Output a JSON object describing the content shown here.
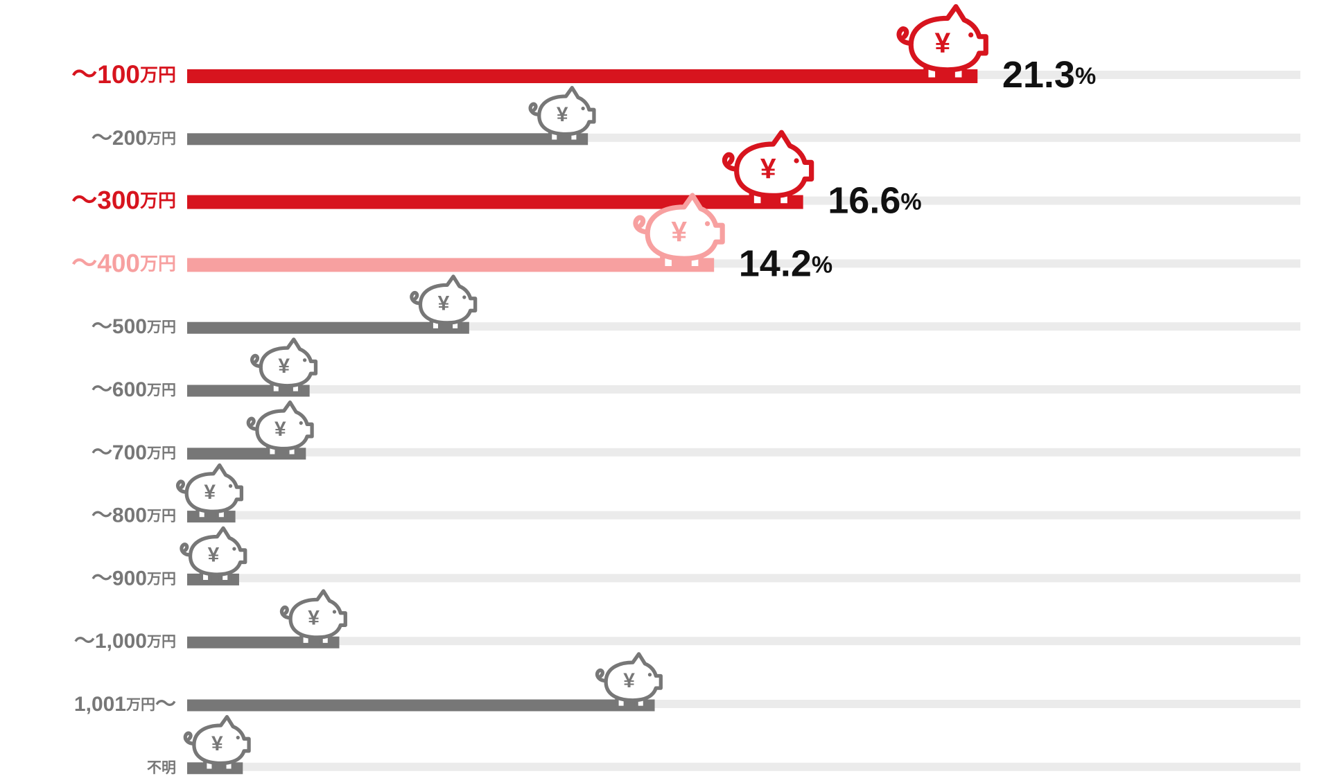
{
  "chart_data": {
    "type": "bar",
    "categories": [
      "〜100万円",
      "〜200万円",
      "〜300万円",
      "〜400万円",
      "〜500万円",
      "〜600万円",
      "〜700万円",
      "〜800万円",
      "〜900万円",
      "〜1,000万円",
      "1,001万円〜",
      "不明"
    ],
    "values": [
      21.3,
      10.8,
      16.6,
      14.2,
      7.6,
      3.3,
      3.2,
      1.3,
      1.4,
      4.1,
      12.6,
      1.5
    ],
    "value_labels": [
      "21.3%",
      null,
      "16.6%",
      "14.2%",
      null,
      null,
      null,
      null,
      null,
      null,
      null,
      null
    ],
    "colors": [
      "#d7141e",
      "#777777",
      "#d7141e",
      "#f7a0a0",
      "#777777",
      "#777777",
      "#777777",
      "#777777",
      "#777777",
      "#777777",
      "#777777",
      "#777777"
    ],
    "track_color": "#ebebeb",
    "icon_symbol": "¥",
    "xlim": [
      0,
      30
    ]
  }
}
